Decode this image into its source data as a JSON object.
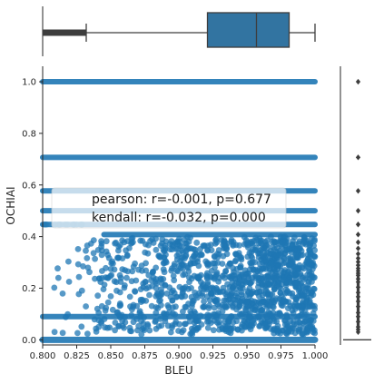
{
  "chart_data": {
    "type": "scatter",
    "subtype": "jointplot",
    "xlabel": "BLEU",
    "ylabel": "OCHIAI",
    "xlim": [
      0.8,
      1.0
    ],
    "ylim": [
      -0.02,
      1.06
    ],
    "x_ticks": [
      "0.800",
      "0.825",
      "0.850",
      "0.875",
      "0.900",
      "0.925",
      "0.950",
      "0.975",
      "1.000"
    ],
    "y_ticks": [
      "0.0",
      "0.2",
      "0.4",
      "0.6",
      "0.8",
      "1.0"
    ],
    "color": "#1f77b4",
    "box_fill": "#3274a1",
    "annotation": {
      "line1": "pearson: r=-0.001, p=0.677",
      "line2": "kendall: r=-0.032, p=0.000"
    },
    "x_marginal_box": {
      "whisker_low": 0.8,
      "q1": 0.921,
      "median": 0.957,
      "q3": 0.981,
      "whisker_high": 1.0,
      "outlier_range": [
        0.8,
        0.832
      ]
    },
    "y_marginal_box": {
      "whisker_low": 0.0,
      "q1": 0.0,
      "median": 0.0,
      "q3": 0.0,
      "whisker_high": 0.0,
      "outliers": [
        1.0,
        0.707,
        0.577,
        0.5,
        0.447,
        0.408,
        0.378,
        0.354,
        0.333,
        0.316,
        0.302,
        0.289,
        0.277,
        0.267,
        0.258,
        0.25,
        0.236,
        0.224,
        0.204,
        0.183,
        0.167,
        0.149,
        0.129,
        0.105,
        0.09,
        0.07,
        0.05,
        0.04,
        0.03
      ]
    },
    "bands": [
      {
        "y": 1.0,
        "from": 0.8,
        "to": 1.0
      },
      {
        "y": 0.707,
        "from": 0.8,
        "to": 1.0
      },
      {
        "y": 0.577,
        "from": 0.8,
        "to": 1.0
      },
      {
        "y": 0.5,
        "from": 0.8,
        "to": 1.0
      },
      {
        "y": 0.447,
        "from": 0.8,
        "to": 1.0
      },
      {
        "y": 0.408,
        "from": 0.845,
        "to": 1.0
      },
      {
        "y": 0.0,
        "from": 0.8,
        "to": 1.0
      },
      {
        "y": 0.09,
        "from": 0.8,
        "to": 1.0
      }
    ],
    "scatter_region": {
      "x": [
        0.8,
        1.0
      ],
      "y": [
        0.02,
        0.4
      ],
      "density": "increasing with x"
    }
  }
}
